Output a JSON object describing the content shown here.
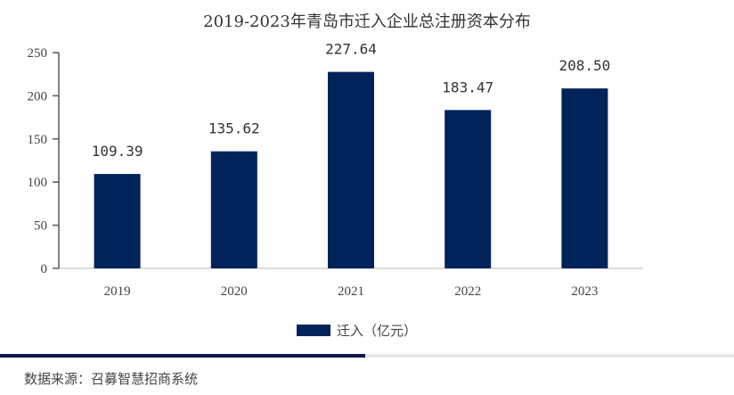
{
  "chart_data": {
    "type": "bar",
    "title": "2019-2023年青岛市迁入企业总注册资本分布",
    "categories": [
      "2019",
      "2020",
      "2021",
      "2022",
      "2023"
    ],
    "series": [
      {
        "name": "迁入（亿元）",
        "values": [
          109.39,
          135.62,
          227.64,
          183.47,
          208.5
        ],
        "labels": [
          "109.39",
          "135.62",
          "227.64",
          "183.47",
          "208.50"
        ]
      }
    ],
    "ylim": [
      0,
      250
    ],
    "yticks": [
      0,
      50,
      100,
      150,
      200,
      250
    ],
    "xlabel": "",
    "ylabel": "",
    "grid": false,
    "legend": "bottom",
    "colors": {
      "bar": "#00235A",
      "footer_dark": "#0A1446",
      "footer_light": "#E6E6E6"
    }
  },
  "source": "数据来源：召募智慧招商系统"
}
